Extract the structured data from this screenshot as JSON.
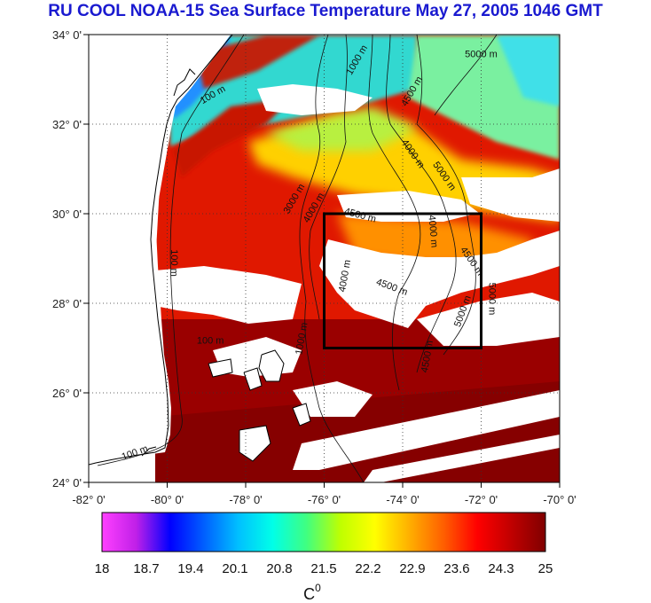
{
  "title": "RU COOL  NOAA-15 Sea Surface Temperature May 27, 2005 1046 GMT",
  "map": {
    "lon_range": [
      -82,
      -70
    ],
    "lat_range": [
      24,
      34
    ],
    "lon_ticks": [
      {
        "value": -82,
        "label": "-82° 0'"
      },
      {
        "value": -80,
        "label": "-80° 0'"
      },
      {
        "value": -78,
        "label": "-78° 0'"
      },
      {
        "value": -76,
        "label": "-76° 0'"
      },
      {
        "value": -74,
        "label": "-74° 0'"
      },
      {
        "value": -72,
        "label": "-72° 0'"
      },
      {
        "value": -70,
        "label": "-70° 0'"
      }
    ],
    "lat_ticks": [
      {
        "value": 34,
        "label": "34° 0'"
      },
      {
        "value": 32,
        "label": "32° 0'"
      },
      {
        "value": 30,
        "label": "30° 0'"
      },
      {
        "value": 28,
        "label": "28° 0'"
      },
      {
        "value": 26,
        "label": "26° 0'"
      },
      {
        "value": 24,
        "label": "24° 0'"
      }
    ],
    "grid": "dotted",
    "study_box": {
      "lon_min": -76,
      "lon_max": -72,
      "lat_min": 27,
      "lat_max": 30
    },
    "contour_labels": [
      {
        "text": "100 m",
        "lon": -78.8,
        "lat": 32.6,
        "angle": -30
      },
      {
        "text": "1000 m",
        "lon": -75.1,
        "lat": 33.4,
        "angle": -60
      },
      {
        "text": "4500 m",
        "lon": -73.7,
        "lat": 32.7,
        "angle": -60
      },
      {
        "text": "5000 m",
        "lon": -72.0,
        "lat": 33.5,
        "angle": 0
      },
      {
        "text": "4000 m",
        "lon": -73.8,
        "lat": 31.3,
        "angle": 55
      },
      {
        "text": "5000 m",
        "lon": -73.0,
        "lat": 30.8,
        "angle": 55
      },
      {
        "text": "3000 m",
        "lon": -76.7,
        "lat": 30.3,
        "angle": -60
      },
      {
        "text": "4000 m",
        "lon": -76.2,
        "lat": 30.1,
        "angle": -60
      },
      {
        "text": "4500 m",
        "lon": -75.1,
        "lat": 29.9,
        "angle": 15
      },
      {
        "text": "4000 m",
        "lon": -73.3,
        "lat": 29.6,
        "angle": 85
      },
      {
        "text": "4500 m",
        "lon": -72.3,
        "lat": 28.9,
        "angle": 55
      },
      {
        "text": "5000 m",
        "lon": -71.8,
        "lat": 28.1,
        "angle": 90
      },
      {
        "text": "5000 m",
        "lon": -72.4,
        "lat": 27.8,
        "angle": -70
      },
      {
        "text": "4500 m",
        "lon": -74.3,
        "lat": 28.3,
        "angle": 20
      },
      {
        "text": "4500 m",
        "lon": -73.3,
        "lat": 26.8,
        "angle": -80
      },
      {
        "text": "4000 m",
        "lon": -75.4,
        "lat": 28.6,
        "angle": -80
      },
      {
        "text": "1000 m",
        "lon": -76.5,
        "lat": 27.2,
        "angle": -80
      },
      {
        "text": "100 m",
        "lon": -78.9,
        "lat": 27.1,
        "angle": 0
      },
      {
        "text": "100 m",
        "lon": -79.9,
        "lat": 28.9,
        "angle": 90
      },
      {
        "text": "100 m",
        "lon": -80.8,
        "lat": 24.6,
        "angle": -20
      }
    ]
  },
  "colorbar": {
    "min": 18,
    "max": 25,
    "tick_labels": [
      "18",
      "18.7",
      "19.4",
      "20.1",
      "20.8",
      "21.5",
      "22.2",
      "22.9",
      "23.6",
      "24.3",
      "25"
    ],
    "unit_label": "C",
    "unit_superscript": "0",
    "stops": [
      "#ff40ff",
      "#c020e8",
      "#0000ff",
      "#0060ff",
      "#00c0ff",
      "#00ffe8",
      "#40ff80",
      "#c0ff00",
      "#ffff00",
      "#ffb000",
      "#ff6000",
      "#ff0000",
      "#c00000",
      "#800000"
    ]
  },
  "colors": {
    "title": "#1a1ad0",
    "cloud": "#ffffff",
    "land": "#ffffff",
    "box": "#000000"
  }
}
